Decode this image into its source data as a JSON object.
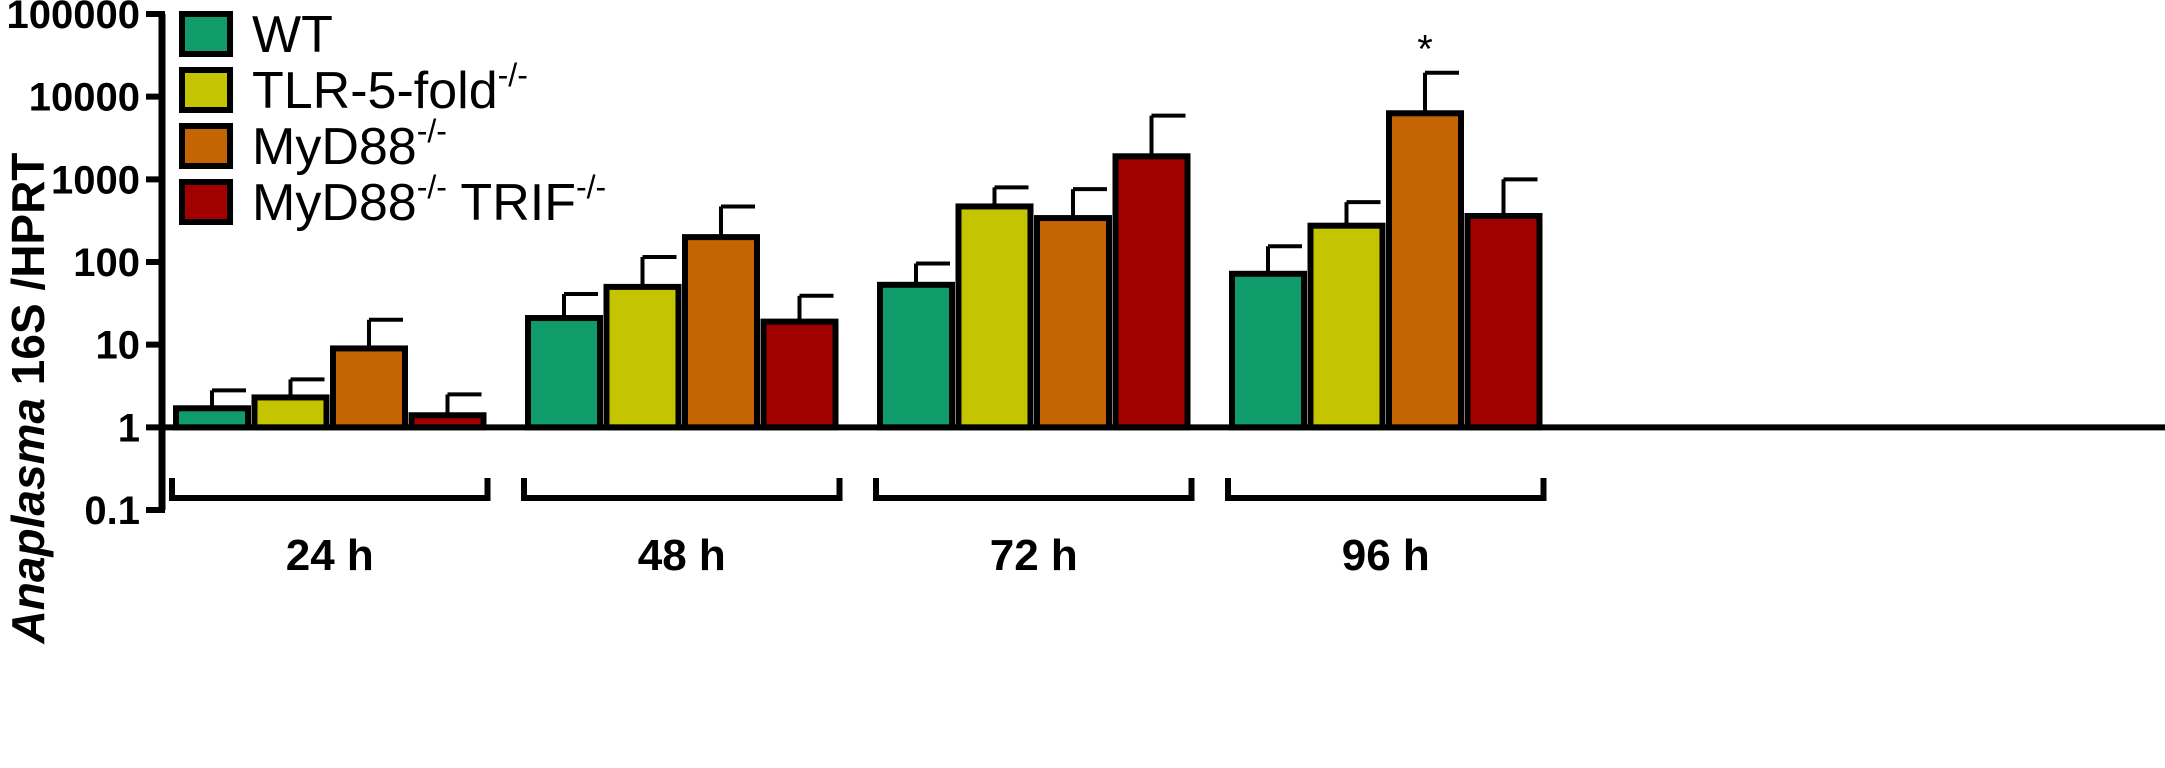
{
  "chart_data": {
    "type": "bar",
    "ylabel": {
      "italic": "Anaplasma",
      "rest": " 16S /HPRT"
    },
    "yscale": "log",
    "ylim": [
      0.1,
      100000
    ],
    "yticks": [
      0.1,
      1,
      10,
      100,
      1000,
      10000,
      100000
    ],
    "ytick_labels": [
      "0.1",
      "1",
      "10",
      "100",
      "1000",
      "10000",
      "100000"
    ],
    "baseline": 1,
    "categories": [
      "24 h",
      "48 h",
      "72 h",
      "96 h"
    ],
    "series": [
      {
        "name": "WT",
        "label_base": "WT",
        "color": "#0f9b6a",
        "values": [
          1.7,
          21,
          53,
          72
        ],
        "errors": [
          2.8,
          41,
          96,
          155
        ]
      },
      {
        "name": "TLR-5-fold-/-",
        "label_base": "TLR-5-fold",
        "label_sup": "-/-",
        "color": "#c5c400",
        "values": [
          2.3,
          50,
          470,
          275
        ],
        "errors": [
          3.8,
          115,
          800,
          530
        ]
      },
      {
        "name": "MyD88-/-",
        "label_base": "MyD88",
        "label_sup": "-/-",
        "color": "#c56403",
        "values": [
          9,
          200,
          340,
          6300
        ],
        "errors": [
          20,
          470,
          760,
          19500
        ]
      },
      {
        "name": "MyD88-/- TRIF-/-",
        "label_base": "MyD88",
        "label_sup": "-/-",
        "label_mid": " TRIF",
        "label_sup2": "-/-",
        "color": "#a00000",
        "values": [
          1.4,
          19,
          1900,
          360
        ],
        "errors": [
          2.5,
          39,
          5900,
          1000
        ]
      }
    ],
    "annotations": [
      {
        "text": "*",
        "category": "96 h",
        "series": "MyD88-/-"
      }
    ],
    "legend": "top-left"
  }
}
